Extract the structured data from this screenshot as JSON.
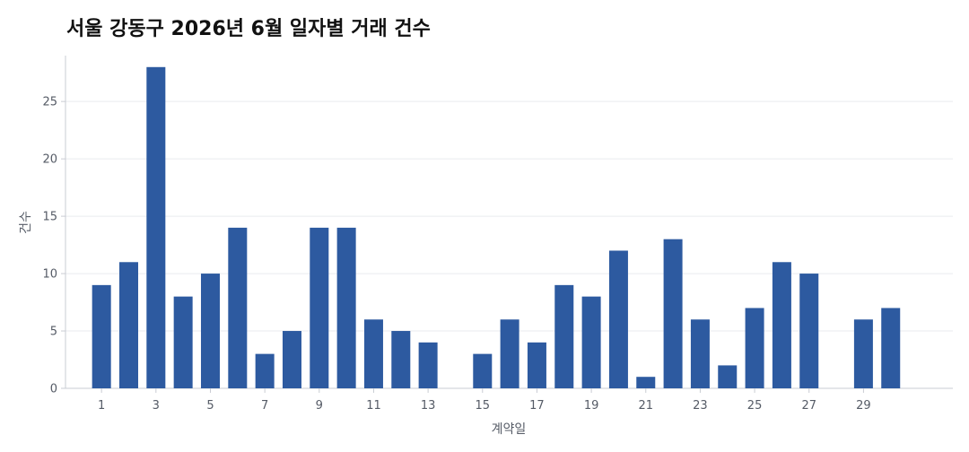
{
  "chart_data": {
    "type": "bar",
    "title": "서울 강동구 2026년 6월 일자별 거래 건수",
    "xlabel": "계약일",
    "ylabel": "건수",
    "categories": [
      1,
      2,
      3,
      4,
      5,
      6,
      7,
      8,
      9,
      10,
      11,
      12,
      13,
      14,
      15,
      16,
      17,
      18,
      19,
      20,
      21,
      22,
      23,
      24,
      25,
      26,
      27,
      28,
      29,
      30
    ],
    "values": [
      9,
      11,
      28,
      8,
      10,
      14,
      3,
      5,
      14,
      14,
      6,
      5,
      4,
      0,
      3,
      6,
      4,
      9,
      8,
      12,
      1,
      13,
      6,
      2,
      7,
      11,
      10,
      0,
      6,
      7
    ],
    "x_ticks": [
      1,
      3,
      5,
      7,
      9,
      11,
      13,
      15,
      17,
      19,
      21,
      23,
      25,
      27,
      29
    ],
    "y_ticks": [
      0,
      5,
      10,
      15,
      20,
      25
    ],
    "ylim": [
      0,
      29
    ],
    "grid": "horizontal",
    "bar_color": "#2d5aa0"
  }
}
